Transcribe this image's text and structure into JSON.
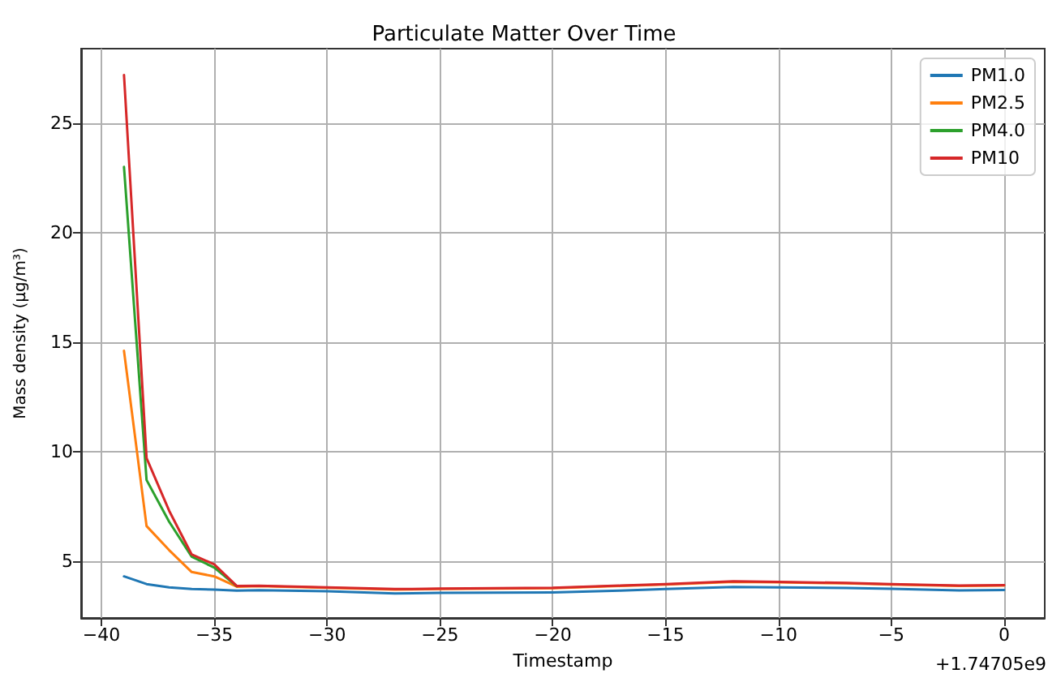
{
  "chart_data": {
    "type": "line",
    "title": "Particulate Matter Over Time",
    "xlabel": "Timestamp",
    "ylabel": "Mass density (µg/m³)",
    "annotations": [
      "+1.74705e9"
    ],
    "x": [
      -39,
      -38,
      -37,
      -36,
      -35,
      -34,
      -33,
      -30,
      -27,
      -25,
      -20,
      -17,
      -15,
      -12,
      -10,
      -7,
      -5,
      -2,
      0
    ],
    "series": [
      {
        "name": "PM1.0",
        "color": "#1f77b4",
        "values": [
          4.3,
          3.95,
          3.8,
          3.72,
          3.7,
          3.65,
          3.67,
          3.62,
          3.52,
          3.55,
          3.57,
          3.65,
          3.72,
          3.82,
          3.8,
          3.77,
          3.73,
          3.66,
          3.68
        ]
      },
      {
        "name": "PM2.5",
        "color": "#ff7f0e",
        "values": [
          14.6,
          6.6,
          5.5,
          4.5,
          4.3,
          3.83,
          3.85,
          3.78,
          3.7,
          3.72,
          3.76,
          3.86,
          3.93,
          4.05,
          4.03,
          3.98,
          3.93,
          3.86,
          3.88
        ]
      },
      {
        "name": "PM4.0",
        "color": "#2ca02c",
        "values": [
          23,
          8.7,
          6.8,
          5.2,
          4.7,
          3.85,
          null,
          null,
          null,
          null,
          null,
          null,
          null,
          null,
          null,
          null,
          null,
          null,
          null
        ]
      },
      {
        "name": "PM10",
        "color": "#d62728",
        "values": [
          27.2,
          9.7,
          7.3,
          5.3,
          4.85,
          3.86,
          3.87,
          3.8,
          3.72,
          3.74,
          3.78,
          3.88,
          3.95,
          4.08,
          4.05,
          4.0,
          3.95,
          3.88,
          3.9
        ]
      }
    ],
    "xlim": [
      -40.9,
      1.8
    ],
    "xticks": [
      -40,
      -35,
      -30,
      -25,
      -20,
      -15,
      -10,
      -5,
      0
    ],
    "ylim": [
      2.4,
      28.4
    ],
    "yticks": [
      5,
      10,
      15,
      20,
      25
    ],
    "grid": true,
    "legend": "top right",
    "marker": "none",
    "line_style": "solid"
  }
}
